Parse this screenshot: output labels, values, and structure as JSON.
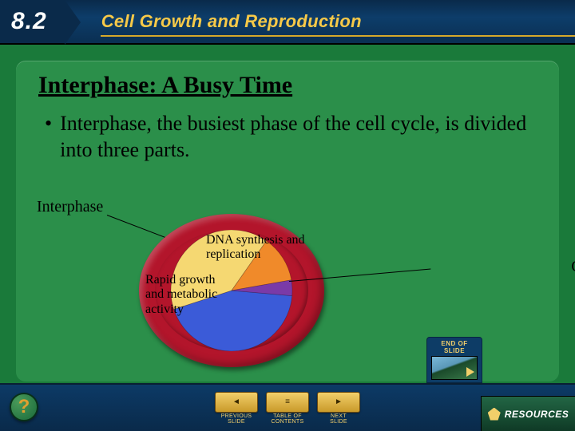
{
  "header": {
    "section_number": "8.2",
    "unit_title": "Cell Growth and Reproduction"
  },
  "slide": {
    "title": "Interphase: A Busy Time",
    "bullet": "Interphase, the busiest phase of the cell cycle, is divided into three parts."
  },
  "diagram": {
    "type": "pie",
    "outer_label": "Interphase",
    "ring_color": "#b3152b",
    "background_color": "#2b8f4a",
    "slices": [
      {
        "id": "g1",
        "label": "Rapid growth and metabolic activity",
        "color": "#3b5bd8",
        "start_deg": 95,
        "end_deg": 252
      },
      {
        "id": "s",
        "label": "DNA synthesis and replication",
        "color": "#f5d872",
        "start_deg": 252,
        "end_deg": 395
      },
      {
        "id": "g2",
        "label": "Centrioles replicate; cell prepares for division",
        "color": "#f08a2a",
        "start_deg": 35,
        "end_deg": 80
      },
      {
        "id": "m",
        "label": "",
        "color": "#7a3aa8",
        "start_deg": 80,
        "end_deg": 95
      }
    ],
    "label_fontsize_inner": 16,
    "label_fontsize_outer": 20,
    "lead_line_color": "#000000"
  },
  "nav": {
    "previous": "PREVIOUS",
    "previous_sub": "SLIDE",
    "contents": "TABLE OF",
    "contents_sub": "CONTENTS",
    "next": "NEXT",
    "next_sub": "SLIDE",
    "end_of_slide": "END OF",
    "end_of_slide_sub": "SLIDE",
    "resources": "RESOURCES",
    "help": "?"
  },
  "colors": {
    "page_bg": "#1a7a3a",
    "card_bg": "#2b8f4a",
    "header_bg": "#0d3d6a",
    "accent_gold": "#f2cf6a",
    "title_gold": "#f7c948",
    "text": "#000000"
  }
}
